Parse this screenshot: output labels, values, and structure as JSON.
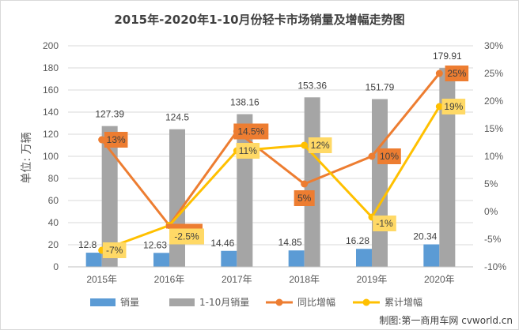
{
  "colors": {
    "monthly": "#5b9bd5",
    "ytd": "#a5a5a5",
    "yoy": "#ed7d31",
    "cumulative": "#ffc000",
    "cumulative_label_bg": "#ffd966",
    "yoy_label_bg": "#ed7d31",
    "grid": "#d9d9d9",
    "text": "#595959"
  },
  "source_note": "制图:第一商用车网 cvworld.cn",
  "chart_data": {
    "type": "bar",
    "title": "2015年-2020年1-10月份轻卡市场销量及增幅走势图",
    "ylabel": "单位: 万辆",
    "ylim": [
      0,
      200
    ],
    "y_ticks": [
      "0",
      "20",
      "40",
      "60",
      "80",
      "100",
      "120",
      "140",
      "160",
      "180",
      "200"
    ],
    "y2lim": [
      -10,
      30
    ],
    "y2_ticks": [
      "-10%",
      "-5%",
      "0%",
      "5%",
      "10%",
      "15%",
      "20%",
      "25%",
      "30%"
    ],
    "categories": [
      "2015年",
      "2016年",
      "2017年",
      "2018年",
      "2019年",
      "2020年"
    ],
    "series": [
      {
        "name": "销量",
        "kind": "bar",
        "axis": "left",
        "values": [
          12.8,
          12.63,
          14.46,
          14.85,
          16.28,
          20.34
        ],
        "labels": [
          "12.8",
          "12.63",
          "14.46",
          "14.85",
          "16.28",
          "20.34"
        ]
      },
      {
        "name": "1-10月销量",
        "kind": "bar",
        "axis": "left",
        "values": [
          127.39,
          124.5,
          138.16,
          153.36,
          151.79,
          179.91
        ],
        "labels": [
          "127.39",
          "124.5",
          "138.16",
          "153.36",
          "151.79",
          "179.91"
        ]
      },
      {
        "name": "同比增幅",
        "kind": "line",
        "axis": "right",
        "values": [
          13,
          -2.5,
          14.5,
          5,
          10,
          25
        ],
        "labels": [
          "13%",
          "",
          "14.5%",
          "5%",
          "10%",
          "25%"
        ]
      },
      {
        "name": "累计增幅",
        "kind": "line",
        "axis": "right",
        "values": [
          -7,
          -2.5,
          11,
          12,
          -1,
          19
        ],
        "labels": [
          "-7%",
          "-2.5%",
          "11%",
          "12%",
          "-1%",
          "19%"
        ]
      }
    ],
    "legend_position": "bottom",
    "grid": true
  }
}
